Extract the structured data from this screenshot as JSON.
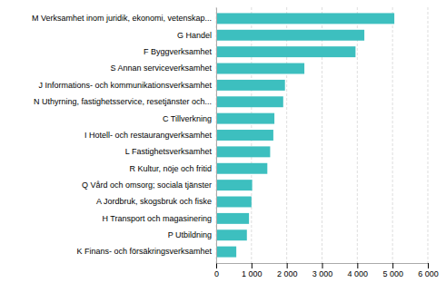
{
  "chart_data": {
    "type": "bar",
    "orientation": "horizontal",
    "categories": [
      "M Verksamhet inom juridik, ekonomi, vetenskap...",
      "G Handel",
      "F Byggverksamhet",
      "S Annan serviceverksamhet",
      "J Informations- och kommunikationsverksamhet",
      "N Uthyrning, fastighetsservice, resetjänster och...",
      "C Tillverkning",
      "I Hotell- och restaurangverksamhet",
      "L Fastighetsverksamhet",
      "R Kultur, nöje och fritid",
      "Q Vård och omsorg; sociala tjänster",
      "A Jordbruk, skogsbruk och fiske",
      "H Transport och magasinering",
      "P Utbildning",
      "K Finans- och försäkringsverksamhet"
    ],
    "values": [
      5050,
      4200,
      3950,
      2500,
      1950,
      1900,
      1650,
      1620,
      1530,
      1450,
      1020,
      1000,
      930,
      870,
      570
    ],
    "color": "#3dbfbf",
    "xlim": [
      0,
      6000
    ],
    "xticks": [
      0,
      {
        "value": 1000,
        "label": "1 000"
      },
      {
        "value": 2000,
        "label": "2 000"
      },
      {
        "value": 3000,
        "label": "3 000"
      },
      {
        "value": 4000,
        "label": "4 000"
      },
      {
        "value": 5000,
        "label": "5 000"
      },
      {
        "value": 6000,
        "label": "6 000"
      }
    ],
    "grid": true
  }
}
